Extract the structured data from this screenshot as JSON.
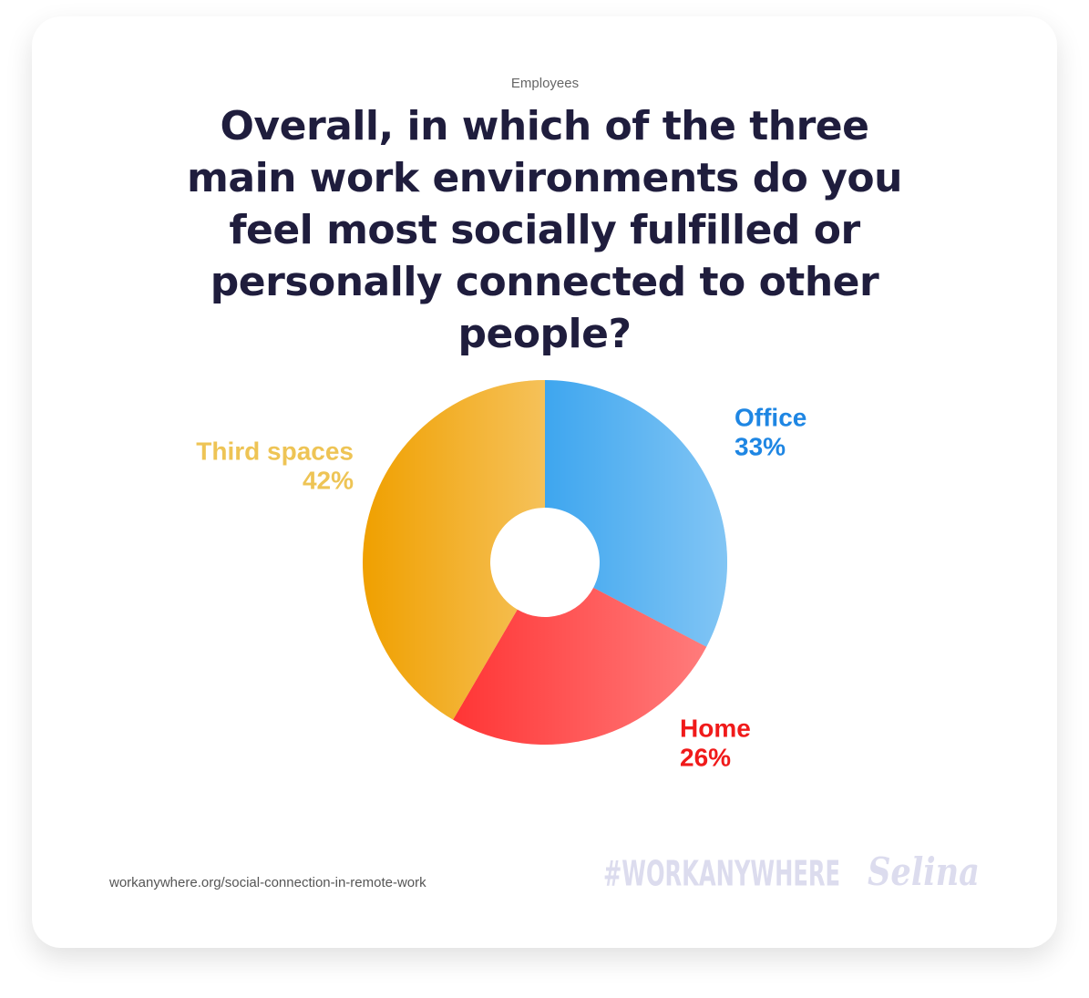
{
  "chart_data": {
    "type": "donut",
    "subtitle": "Employees",
    "title": "Overall, in which of the three main work environments do you feel most socially fulfilled or personally connected to other people?",
    "categories": [
      "Office",
      "Home",
      "Third spaces"
    ],
    "values": [
      33,
      26,
      42
    ],
    "value_labels": [
      "33%",
      "26%",
      "42%"
    ],
    "colors": [
      "#3ea6ef",
      "#ff3535",
      "#f0a000"
    ],
    "label_colors": [
      "#1e86e3",
      "#f01a1a",
      "#eec455"
    ]
  },
  "footer": {
    "source": "workanywhere.org/social-connection-in-remote-work",
    "hashtag": "#WORKANYWHERE",
    "brand": "Selina"
  }
}
